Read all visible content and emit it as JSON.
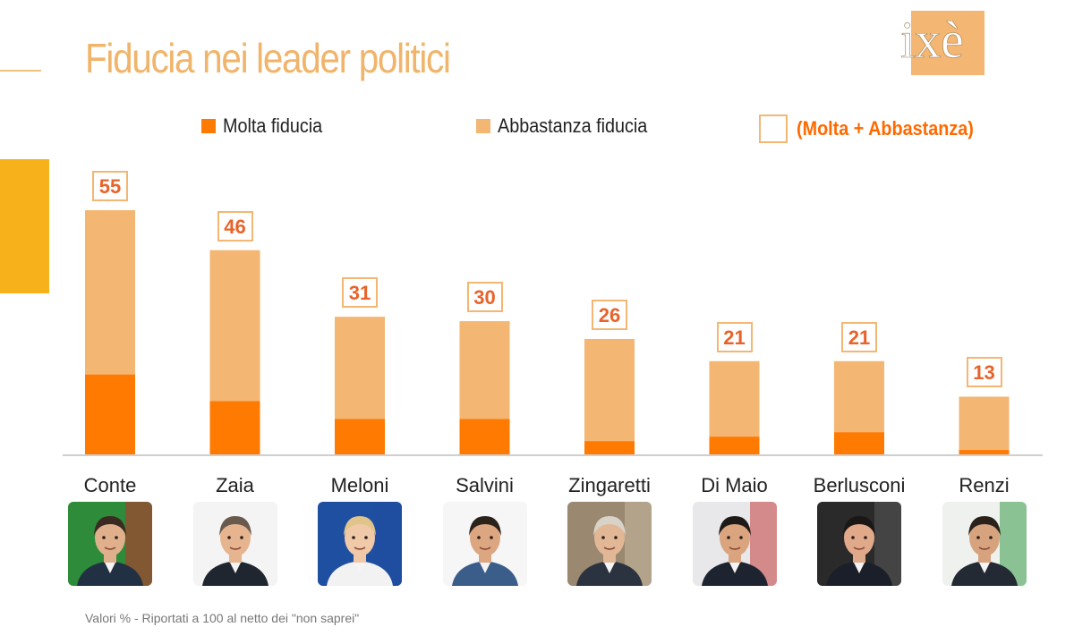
{
  "title": "Fiducia nei leader politici",
  "logo": {
    "text": "ixè"
  },
  "legend": {
    "molta": "Molta fiducia",
    "abbastanza": "Abbastanza fiducia",
    "total": "(Molta + Abbastanza)"
  },
  "colors": {
    "molta": "#ff7a00",
    "abbastanza": "#f3b673",
    "title": "#f0b46a",
    "accent": "#f7b21b",
    "label_text": "#e8632a"
  },
  "footnote": "Valori % - Riportati a 100 al netto dei \"non saprei\"",
  "chart_data": {
    "type": "bar",
    "stacked": true,
    "title": "Fiducia nei leader politici",
    "categories": [
      "Conte",
      "Zaia",
      "Meloni",
      "Salvini",
      "Zingaretti",
      "Di Maio",
      "Berlusconi",
      "Renzi"
    ],
    "series": [
      {
        "name": "Molta fiducia",
        "values": [
          18,
          12,
          8,
          8,
          3,
          4,
          5,
          1
        ]
      },
      {
        "name": "Abbastanza fiducia",
        "values": [
          37,
          34,
          23,
          22,
          23,
          17,
          16,
          12
        ]
      }
    ],
    "totals": [
      55,
      46,
      31,
      30,
      26,
      21,
      21,
      13
    ],
    "ylim": [
      0,
      55
    ],
    "xlabel": "",
    "ylabel": "",
    "grid": false,
    "legend_position": "top"
  },
  "portraits": [
    {
      "name": "Conte",
      "icon": "portrait-conte-icon",
      "bg": "#2e8b3a",
      "bg2": "#c9302c",
      "skin": "#e0b08c",
      "hair": "#3a2a22",
      "suit": "#223044"
    },
    {
      "name": "Zaia",
      "icon": "portrait-zaia-icon",
      "bg": "#f4f4f4",
      "bg2": "#f4f4f4",
      "skin": "#e6b590",
      "hair": "#6a5a4e",
      "suit": "#1f2630"
    },
    {
      "name": "Meloni",
      "icon": "portrait-meloni-icon",
      "bg": "#1f4fa0",
      "bg2": "#1f4fa0",
      "skin": "#f0c9a8",
      "hair": "#e0c48a",
      "suit": "#f2f2f2"
    },
    {
      "name": "Salvini",
      "icon": "portrait-salvini-icon",
      "bg": "#f6f6f6",
      "bg2": "#f6f6f6",
      "skin": "#dca681",
      "hair": "#2b221c",
      "suit": "#3a5d8a"
    },
    {
      "name": "Zingaretti",
      "icon": "portrait-zingaretti-icon",
      "bg": "#9a8870",
      "bg2": "#c9b9a0",
      "skin": "#e2b795",
      "hair": "#d8d2c8",
      "suit": "#2b3340"
    },
    {
      "name": "Di Maio",
      "icon": "portrait-dimaio-icon",
      "bg": "#e8e8ea",
      "bg2": "#c23b3b",
      "skin": "#d9a47e",
      "hair": "#1e1a18",
      "suit": "#1d2430"
    },
    {
      "name": "Berlusconi",
      "icon": "portrait-berlusconi-icon",
      "bg": "#2a2a2a",
      "bg2": "#5a5a5a",
      "skin": "#e0a98a",
      "hair": "#1b1715",
      "suit": "#1a1f2a"
    },
    {
      "name": "Renzi",
      "icon": "portrait-renzi-icon",
      "bg": "#eef1ee",
      "bg2": "#3a9b4a",
      "skin": "#d7a37f",
      "hair": "#2a211b",
      "suit": "#232a34"
    }
  ]
}
